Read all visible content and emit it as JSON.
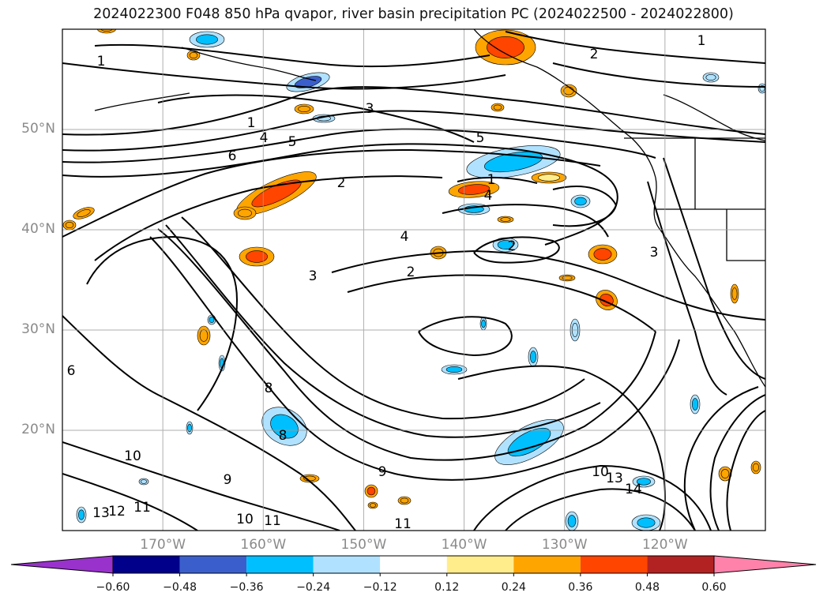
{
  "title": "2024022300 F048 850 hPa qvapor, river basin precipitation PC (2024022500 - 2024022800)",
  "map": {
    "lon_range": [
      -180,
      -110
    ],
    "lat_range": [
      10,
      60
    ],
    "graticule_step_deg": 10,
    "lat_labels": [
      "50°N",
      "40°N",
      "30°N",
      "20°N"
    ],
    "lon_labels": [
      "170°W",
      "160°W",
      "150°W",
      "140°W",
      "130°W",
      "120°W"
    ],
    "contour_color": "#000000",
    "contour_labels": [
      "1",
      "1",
      "1",
      "1",
      "2",
      "2",
      "2",
      "2",
      "3",
      "3",
      "3",
      "4",
      "4",
      "4",
      "5",
      "5",
      "6",
      "6",
      "8",
      "8",
      "9",
      "9",
      "10",
      "10",
      "10",
      "11",
      "11",
      "11",
      "12",
      "13",
      "13",
      "14"
    ]
  },
  "colorbar": {
    "ticks": [
      "−0.60",
      "−0.48",
      "−0.36",
      "−0.24",
      "−0.12",
      "0.12",
      "0.24",
      "0.36",
      "0.48",
      "0.60"
    ],
    "colors": [
      "#9932cc",
      "#00008b",
      "#3a5fcd",
      "#00bfff",
      "#b0e2ff",
      "#ffffff",
      "#ffec8b",
      "#ffa500",
      "#ff4500",
      "#b22222",
      "#ff82ab"
    ],
    "extend": "both"
  }
}
